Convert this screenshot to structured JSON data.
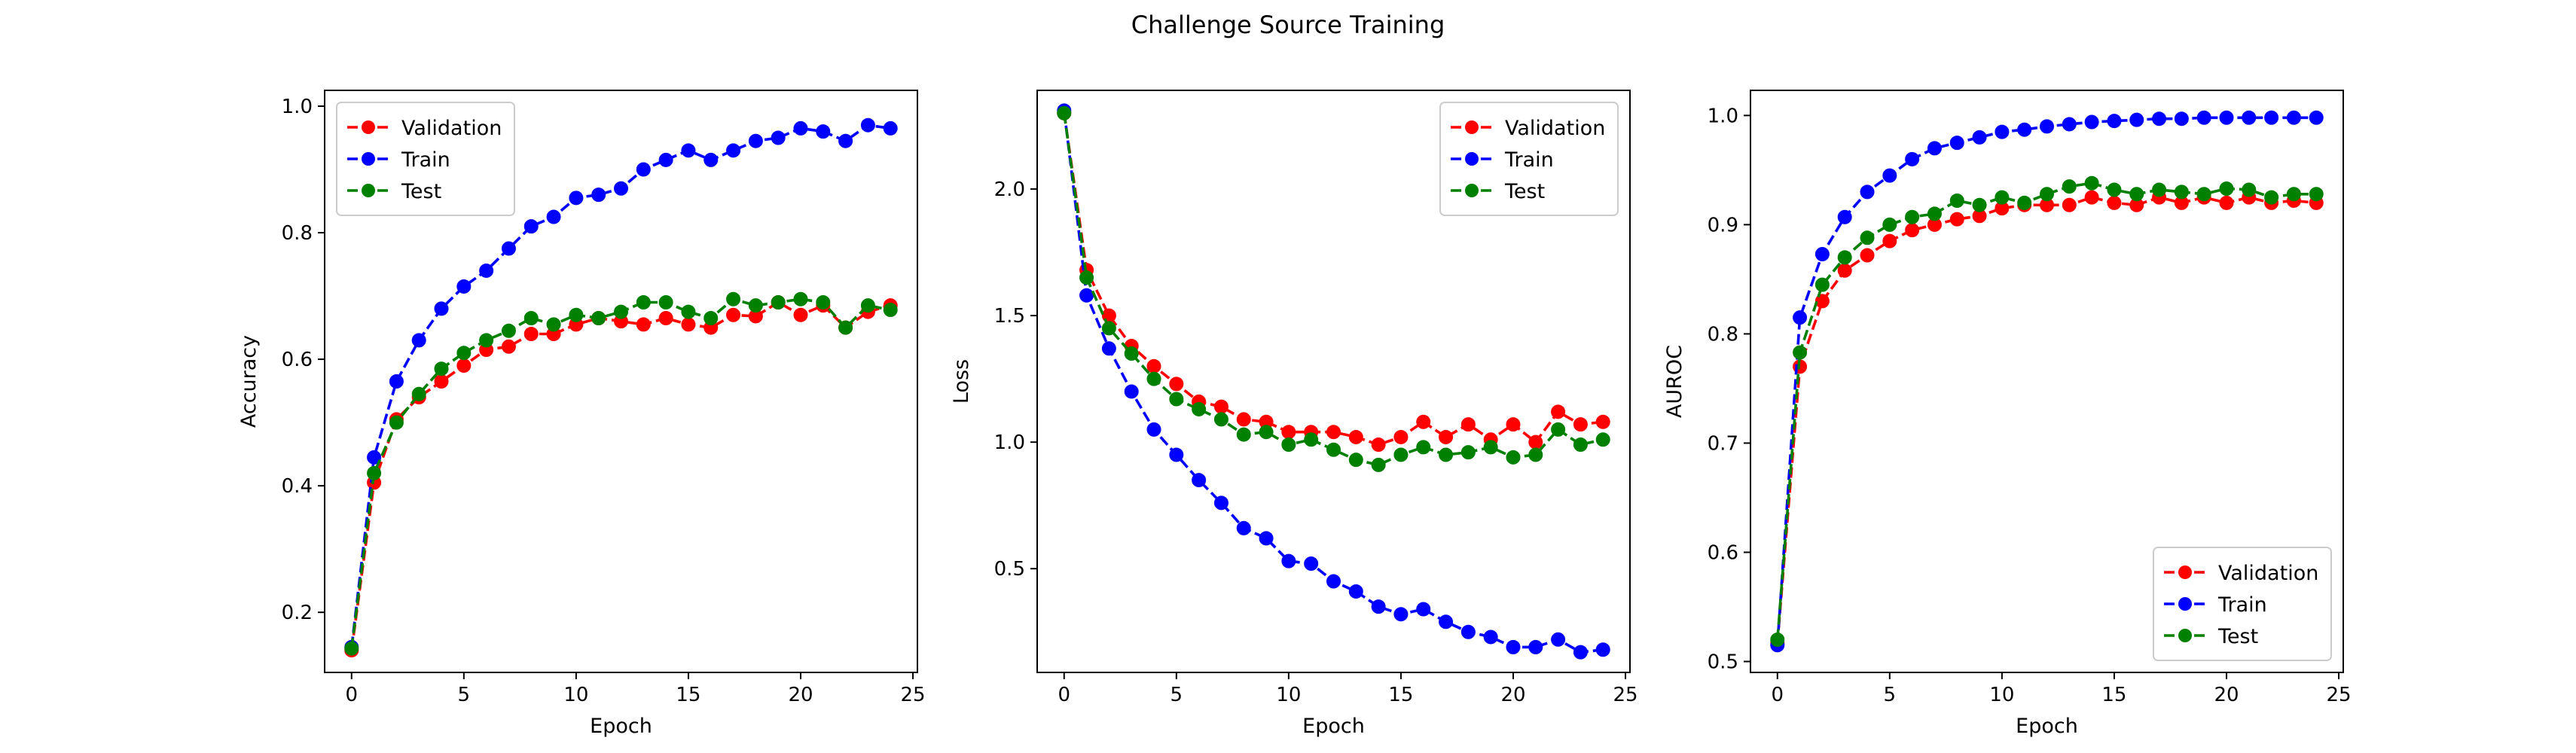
{
  "figure": {
    "title": "Challenge Source Training",
    "background": "#ffffff"
  },
  "colors": {
    "Validation": "#ff0000",
    "Train": "#0000ff",
    "Test": "#008000"
  },
  "chart_data": [
    {
      "type": "line",
      "title": "",
      "xlabel": "Epoch",
      "ylabel": "Accuracy",
      "xlim": [
        -1.2,
        25.2
      ],
      "ylim": [
        0.105,
        1.025
      ],
      "xticks": [
        0,
        5,
        10,
        15,
        20,
        25
      ],
      "yticks": [
        0.2,
        0.4,
        0.6,
        0.8,
        1.0
      ],
      "ytick_labels": [
        "0.2",
        "0.4",
        "0.6",
        "0.8",
        "1.0"
      ],
      "legend_position": "top-left",
      "grid": false,
      "line_style": "dashed",
      "marker": "circle",
      "x": [
        0,
        1,
        2,
        3,
        4,
        5,
        6,
        7,
        8,
        9,
        10,
        11,
        12,
        13,
        14,
        15,
        16,
        17,
        18,
        19,
        20,
        21,
        22,
        23,
        24
      ],
      "series": [
        {
          "name": "Validation",
          "values": [
            0.14,
            0.405,
            0.505,
            0.54,
            0.565,
            0.59,
            0.615,
            0.62,
            0.64,
            0.64,
            0.655,
            0.665,
            0.66,
            0.655,
            0.665,
            0.655,
            0.65,
            0.67,
            0.668,
            0.69,
            0.67,
            0.685,
            0.65,
            0.675,
            0.685
          ]
        },
        {
          "name": "Train",
          "values": [
            0.145,
            0.445,
            0.565,
            0.63,
            0.68,
            0.715,
            0.74,
            0.775,
            0.81,
            0.825,
            0.855,
            0.86,
            0.87,
            0.9,
            0.915,
            0.93,
            0.915,
            0.93,
            0.945,
            0.95,
            0.965,
            0.96,
            0.945,
            0.97,
            0.965
          ]
        },
        {
          "name": "Test",
          "values": [
            0.143,
            0.42,
            0.5,
            0.545,
            0.585,
            0.61,
            0.63,
            0.645,
            0.665,
            0.655,
            0.67,
            0.665,
            0.675,
            0.69,
            0.69,
            0.675,
            0.665,
            0.695,
            0.685,
            0.69,
            0.695,
            0.69,
            0.65,
            0.685,
            0.678
          ]
        }
      ]
    },
    {
      "type": "line",
      "title": "",
      "xlabel": "Epoch",
      "ylabel": "Loss",
      "xlim": [
        -1.2,
        25.2
      ],
      "ylim": [
        0.09,
        2.39
      ],
      "xticks": [
        0,
        5,
        10,
        15,
        20,
        25
      ],
      "yticks": [
        0.5,
        1.0,
        1.5,
        2.0
      ],
      "ytick_labels": [
        "0.5",
        "1.0",
        "1.5",
        "2.0"
      ],
      "legend_position": "top-right",
      "grid": false,
      "line_style": "dashed",
      "marker": "circle",
      "x": [
        0,
        1,
        2,
        3,
        4,
        5,
        6,
        7,
        8,
        9,
        10,
        11,
        12,
        13,
        14,
        15,
        16,
        17,
        18,
        19,
        20,
        21,
        22,
        23,
        24
      ],
      "series": [
        {
          "name": "Validation",
          "values": [
            2.3,
            1.68,
            1.5,
            1.38,
            1.3,
            1.23,
            1.16,
            1.14,
            1.09,
            1.08,
            1.04,
            1.04,
            1.04,
            1.02,
            0.99,
            1.02,
            1.08,
            1.02,
            1.07,
            1.01,
            1.07,
            1.0,
            1.12,
            1.07,
            1.08
          ]
        },
        {
          "name": "Train",
          "values": [
            2.31,
            1.58,
            1.37,
            1.2,
            1.05,
            0.95,
            0.85,
            0.76,
            0.66,
            0.62,
            0.53,
            0.52,
            0.45,
            0.41,
            0.35,
            0.32,
            0.34,
            0.29,
            0.25,
            0.23,
            0.19,
            0.19,
            0.22,
            0.17,
            0.18
          ]
        },
        {
          "name": "Test",
          "values": [
            2.3,
            1.65,
            1.45,
            1.35,
            1.25,
            1.17,
            1.13,
            1.09,
            1.03,
            1.04,
            0.99,
            1.01,
            0.97,
            0.93,
            0.91,
            0.95,
            0.98,
            0.95,
            0.96,
            0.98,
            0.94,
            0.95,
            1.05,
            0.99,
            1.01
          ]
        }
      ]
    },
    {
      "type": "line",
      "title": "",
      "xlabel": "Epoch",
      "ylabel": "AUROC",
      "xlim": [
        -1.2,
        25.2
      ],
      "ylim": [
        0.49,
        1.023
      ],
      "xticks": [
        0,
        5,
        10,
        15,
        20,
        25
      ],
      "yticks": [
        0.5,
        0.6,
        0.7,
        0.8,
        0.9,
        1.0
      ],
      "ytick_labels": [
        "0.5",
        "0.6",
        "0.7",
        "0.8",
        "0.9",
        "1.0"
      ],
      "legend_position": "bottom-right",
      "grid": false,
      "line_style": "dashed",
      "marker": "circle",
      "x": [
        0,
        1,
        2,
        3,
        4,
        5,
        6,
        7,
        8,
        9,
        10,
        11,
        12,
        13,
        14,
        15,
        16,
        17,
        18,
        19,
        20,
        21,
        22,
        23,
        24
      ],
      "series": [
        {
          "name": "Validation",
          "values": [
            0.517,
            0.77,
            0.83,
            0.858,
            0.872,
            0.885,
            0.895,
            0.9,
            0.905,
            0.908,
            0.915,
            0.918,
            0.918,
            0.918,
            0.925,
            0.92,
            0.918,
            0.925,
            0.92,
            0.925,
            0.92,
            0.925,
            0.92,
            0.922,
            0.92
          ]
        },
        {
          "name": "Train",
          "values": [
            0.515,
            0.815,
            0.873,
            0.907,
            0.93,
            0.945,
            0.96,
            0.97,
            0.975,
            0.98,
            0.985,
            0.987,
            0.99,
            0.992,
            0.994,
            0.995,
            0.996,
            0.997,
            0.997,
            0.998,
            0.998,
            0.998,
            0.998,
            0.998,
            0.998
          ]
        },
        {
          "name": "Test",
          "values": [
            0.52,
            0.783,
            0.845,
            0.87,
            0.888,
            0.9,
            0.907,
            0.91,
            0.922,
            0.918,
            0.925,
            0.92,
            0.928,
            0.935,
            0.938,
            0.932,
            0.928,
            0.932,
            0.93,
            0.928,
            0.933,
            0.932,
            0.925,
            0.928,
            0.928
          ]
        }
      ]
    }
  ]
}
